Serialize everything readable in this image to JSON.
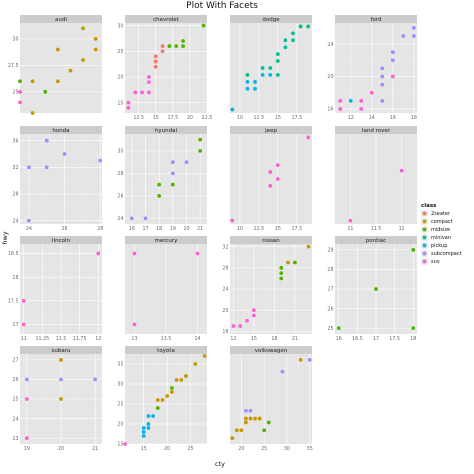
{
  "chart_data": {
    "type": "scatter",
    "title": "Plot With Facets",
    "xlabel": "cty",
    "ylabel": "hwy",
    "legend": {
      "title": "class",
      "position": "right",
      "entries": [
        {
          "name": "2seater",
          "color": "#f8766d"
        },
        {
          "name": "compact",
          "color": "#c49a00"
        },
        {
          "name": "midsize",
          "color": "#53b400"
        },
        {
          "name": "minivan",
          "color": "#00c094"
        },
        {
          "name": "pickup",
          "color": "#00b6eb"
        },
        {
          "name": "subcompact",
          "color": "#a58aff"
        },
        {
          "name": "suv",
          "color": "#fb61d7"
        }
      ]
    },
    "grid": true,
    "facets": [
      {
        "name": "audi",
        "xlim": [
          15,
          21.5
        ],
        "ylim": [
          23,
          31.5
        ],
        "xticks": [],
        "yticks": [
          25.0,
          27.5,
          30.0
        ],
        "points": [
          [
            15,
            24,
            "suv"
          ],
          [
            15,
            25,
            "suv"
          ],
          [
            15,
            26,
            "midsize"
          ],
          [
            16,
            23,
            "compact"
          ],
          [
            16,
            26,
            "compact"
          ],
          [
            17,
            25,
            "midsize"
          ],
          [
            18,
            26,
            "compact"
          ],
          [
            18,
            29,
            "compact"
          ],
          [
            19,
            27,
            "compact"
          ],
          [
            20,
            28,
            "compact"
          ],
          [
            21,
            29,
            "compact"
          ],
          [
            20,
            31,
            "compact"
          ],
          [
            21,
            30,
            "compact"
          ]
        ]
      },
      {
        "name": "chevrolet",
        "xlim": [
          10.5,
          22.5
        ],
        "ylim": [
          13,
          30.5
        ],
        "xticks": [
          12.5,
          15.0,
          17.5,
          20.0,
          22.5
        ],
        "yticks": [
          15,
          20,
          25,
          30
        ],
        "points": [
          [
            11,
            14,
            "suv"
          ],
          [
            11,
            15,
            "suv"
          ],
          [
            12,
            17,
            "suv"
          ],
          [
            13,
            17,
            "suv"
          ],
          [
            14,
            17,
            "suv"
          ],
          [
            14,
            19,
            "suv"
          ],
          [
            14,
            20,
            "suv"
          ],
          [
            15,
            22,
            "2seater"
          ],
          [
            15,
            23,
            "2seater"
          ],
          [
            15,
            24,
            "2seater"
          ],
          [
            16,
            25,
            "2seater"
          ],
          [
            16,
            26,
            "2seater"
          ],
          [
            17,
            26,
            "midsize"
          ],
          [
            18,
            26,
            "midsize"
          ],
          [
            19,
            27,
            "midsize"
          ],
          [
            22,
            30,
            "midsize"
          ],
          [
            19,
            26,
            "midsize"
          ]
        ]
      },
      {
        "name": "dodge",
        "xlim": [
          8.7,
          19.5
        ],
        "ylim": [
          11.5,
          24.5
        ],
        "xticks": [
          10.0,
          12.5,
          15.0,
          17.5
        ],
        "yticks": [],
        "points": [
          [
            9,
            12,
            "pickup"
          ],
          [
            11,
            15,
            "pickup"
          ],
          [
            11,
            16,
            "pickup"
          ],
          [
            11,
            17,
            "minivan"
          ],
          [
            12,
            15,
            "pickup"
          ],
          [
            12,
            16,
            "pickup"
          ],
          [
            13,
            17,
            "pickup"
          ],
          [
            13,
            18,
            "minivan"
          ],
          [
            14,
            17,
            "pickup"
          ],
          [
            14,
            18,
            "minivan"
          ],
          [
            15,
            17,
            "minivan"
          ],
          [
            15,
            19,
            "minivan"
          ],
          [
            15,
            20,
            "minivan"
          ],
          [
            16,
            21,
            "minivan"
          ],
          [
            16,
            22,
            "minivan"
          ],
          [
            17,
            22,
            "minivan"
          ],
          [
            17,
            23,
            "minivan"
          ],
          [
            18,
            24,
            "minivan"
          ],
          [
            19,
            24,
            "minivan"
          ]
        ]
      },
      {
        "name": "ford",
        "xlim": [
          10.5,
          18.3
        ],
        "ylim": [
          15.5,
          26.6
        ],
        "xticks": [
          12,
          14,
          16,
          18
        ],
        "yticks": [
          16,
          20,
          24
        ],
        "points": [
          [
            11,
            16,
            "suv"
          ],
          [
            11,
            17,
            "suv"
          ],
          [
            12,
            17,
            "pickup"
          ],
          [
            13,
            16,
            "suv"
          ],
          [
            13,
            17,
            "suv"
          ],
          [
            14,
            18,
            "suv"
          ],
          [
            15,
            17,
            "subcompact"
          ],
          [
            15,
            19,
            "subcompact"
          ],
          [
            15,
            20,
            "subcompact"
          ],
          [
            15,
            21,
            "subcompact"
          ],
          [
            16,
            22,
            "subcompact"
          ],
          [
            16,
            23,
            "subcompact"
          ],
          [
            17,
            25,
            "subcompact"
          ],
          [
            18,
            25,
            "subcompact"
          ],
          [
            18,
            26,
            "subcompact"
          ],
          [
            16,
            20,
            "suv"
          ]
        ]
      },
      {
        "name": "honda",
        "xlim": [
          23.5,
          28.1
        ],
        "ylim": [
          23.5,
          37
        ],
        "xticks": [
          24,
          26,
          28
        ],
        "yticks": [
          24,
          28,
          32,
          36
        ],
        "points": [
          [
            24,
            24,
            "subcompact"
          ],
          [
            24,
            32,
            "subcompact"
          ],
          [
            25,
            32,
            "subcompact"
          ],
          [
            25,
            36,
            "subcompact"
          ],
          [
            26,
            34,
            "subcompact"
          ],
          [
            25,
            36,
            "subcompact"
          ],
          [
            28,
            33,
            "subcompact"
          ]
        ]
      },
      {
        "name": "hyundai",
        "xlim": [
          15.5,
          21.5
        ],
        "ylim": [
          23.5,
          31.5
        ],
        "xticks": [
          16,
          17,
          18,
          19,
          20,
          21
        ],
        "yticks": [
          24,
          26,
          28,
          30
        ],
        "points": [
          [
            16,
            24,
            "subcompact"
          ],
          [
            17,
            24,
            "subcompact"
          ],
          [
            18,
            26,
            "midsize"
          ],
          [
            18,
            27,
            "midsize"
          ],
          [
            19,
            27,
            "midsize"
          ],
          [
            19,
            28,
            "subcompact"
          ],
          [
            19,
            29,
            "subcompact"
          ],
          [
            20,
            29,
            "subcompact"
          ],
          [
            21,
            30,
            "midsize"
          ],
          [
            21,
            31,
            "midsize"
          ]
        ]
      },
      {
        "name": "jeep",
        "xlim": [
          8.7,
          19.5
        ],
        "ylim": [
          11.5,
          24.5
        ],
        "xticks": [
          10.0,
          12.5,
          15.0,
          17.5
        ],
        "yticks": [],
        "points": [
          [
            9,
            12,
            "suv"
          ],
          [
            14,
            17,
            "suv"
          ],
          [
            14,
            19,
            "suv"
          ],
          [
            15,
            18,
            "suv"
          ],
          [
            15,
            20,
            "suv"
          ],
          [
            19,
            24,
            "suv"
          ]
        ]
      },
      {
        "name": "land rover",
        "xlim": [
          10.7,
          12.3
        ],
        "ylim": [
          14.8,
          20.2
        ],
        "xticks": [
          11.0,
          11.5,
          12.0
        ],
        "yticks": [],
        "points": [
          [
            11,
            15,
            "suv"
          ],
          [
            12,
            18,
            "suv"
          ]
        ]
      },
      {
        "name": "lincoln",
        "xlim": [
          10.95,
          12.05
        ],
        "ylim": [
          16.8,
          18.7
        ],
        "xticks": [
          11.0,
          11.25,
          11.5,
          11.75,
          12.0
        ],
        "yticks": [
          17.0,
          17.5,
          18.0,
          18.5
        ],
        "points": [
          [
            11,
            17,
            "suv"
          ],
          [
            11,
            17.5,
            "suv"
          ],
          [
            12,
            18.5,
            "suv"
          ]
        ]
      },
      {
        "name": "mercury",
        "xlim": [
          12.85,
          14.15
        ],
        "ylim": [
          16.8,
          18.7
        ],
        "xticks": [
          13.0,
          13.5,
          14.0
        ],
        "yticks": [],
        "points": [
          [
            13,
            17,
            "suv"
          ],
          [
            13,
            18.5,
            "suv"
          ],
          [
            14,
            18.5,
            "suv"
          ]
        ]
      },
      {
        "name": "nissan",
        "xlim": [
          11.5,
          23.5
        ],
        "ylim": [
          15.5,
          32.5
        ],
        "xticks": [
          12,
          15,
          18,
          21
        ],
        "yticks": [
          16,
          20,
          24,
          28,
          32
        ],
        "points": [
          [
            12,
            17,
            "suv"
          ],
          [
            13,
            17,
            "suv"
          ],
          [
            14,
            18,
            "suv"
          ],
          [
            15,
            19,
            "suv"
          ],
          [
            15,
            20,
            "suv"
          ],
          [
            19,
            26,
            "midsize"
          ],
          [
            19,
            27,
            "midsize"
          ],
          [
            19,
            28,
            "midsize"
          ],
          [
            20,
            29,
            "compact"
          ],
          [
            21,
            29,
            "midsize"
          ],
          [
            23,
            32,
            "compact"
          ]
        ]
      },
      {
        "name": "pontiac",
        "xlim": [
          15.9,
          18.1
        ],
        "ylim": [
          24.7,
          29.3
        ],
        "xticks": [
          16.0,
          16.5,
          17.0,
          17.5,
          18.0
        ],
        "yticks": [
          25,
          26,
          27,
          28,
          29
        ],
        "points": [
          [
            16,
            25,
            "midsize"
          ],
          [
            17,
            27,
            "midsize"
          ],
          [
            18,
            25,
            "midsize"
          ],
          [
            18,
            29,
            "midsize"
          ]
        ]
      },
      {
        "name": "subaru",
        "xlim": [
          18.8,
          21.2
        ],
        "ylim": [
          22.7,
          27.3
        ],
        "xticks": [
          19,
          20,
          21
        ],
        "yticks": [
          23,
          24,
          25,
          26,
          27
        ],
        "points": [
          [
            19,
            23,
            "suv"
          ],
          [
            19,
            25,
            "suv"
          ],
          [
            19,
            26,
            "subcompact"
          ],
          [
            20,
            25,
            "compact"
          ],
          [
            20,
            26,
            "subcompact"
          ],
          [
            20,
            27,
            "compact"
          ],
          [
            21,
            26,
            "subcompact"
          ]
        ]
      },
      {
        "name": "toyota",
        "xlim": [
          11,
          28.5
        ],
        "ylim": [
          15,
          37.5
        ],
        "xticks": [
          15,
          20,
          25
        ],
        "yticks": [
          15,
          20,
          25,
          30,
          35
        ],
        "points": [
          [
            11,
            15,
            "suv"
          ],
          [
            15,
            17,
            "pickup"
          ],
          [
            15,
            18,
            "pickup"
          ],
          [
            15,
            19,
            "pickup"
          ],
          [
            16,
            19,
            "pickup"
          ],
          [
            16,
            20,
            "pickup"
          ],
          [
            16,
            22,
            "pickup"
          ],
          [
            17,
            22,
            "pickup"
          ],
          [
            18,
            24,
            "midsize"
          ],
          [
            18,
            26,
            "compact"
          ],
          [
            19,
            26,
            "compact"
          ],
          [
            20,
            27,
            "compact"
          ],
          [
            21,
            28,
            "compact"
          ],
          [
            21,
            29,
            "midsize"
          ],
          [
            22,
            31,
            "compact"
          ],
          [
            23,
            31,
            "compact"
          ],
          [
            24,
            32,
            "compact"
          ],
          [
            26,
            35,
            "compact"
          ],
          [
            28,
            37,
            "compact"
          ]
        ]
      },
      {
        "name": "volkswagen",
        "xlim": [
          17.5,
          35.5
        ],
        "ylim": [
          22.5,
          45.5
        ],
        "xticks": [
          20,
          25,
          30,
          35
        ],
        "yticks": [],
        "points": [
          [
            18,
            24,
            "compact"
          ],
          [
            19,
            26,
            "compact"
          ],
          [
            20,
            26,
            "compact"
          ],
          [
            21,
            28,
            "compact"
          ],
          [
            21,
            29,
            "compact"
          ],
          [
            22,
            29,
            "compact"
          ],
          [
            23,
            29,
            "compact"
          ],
          [
            24,
            29,
            "compact"
          ],
          [
            25,
            26,
            "midsize"
          ],
          [
            26,
            28,
            "midsize"
          ],
          [
            21,
            31,
            "subcompact"
          ],
          [
            22,
            31,
            "subcompact"
          ],
          [
            29,
            41,
            "subcompact"
          ],
          [
            33,
            44,
            "compact"
          ],
          [
            35,
            44,
            "subcompact"
          ]
        ]
      }
    ]
  }
}
